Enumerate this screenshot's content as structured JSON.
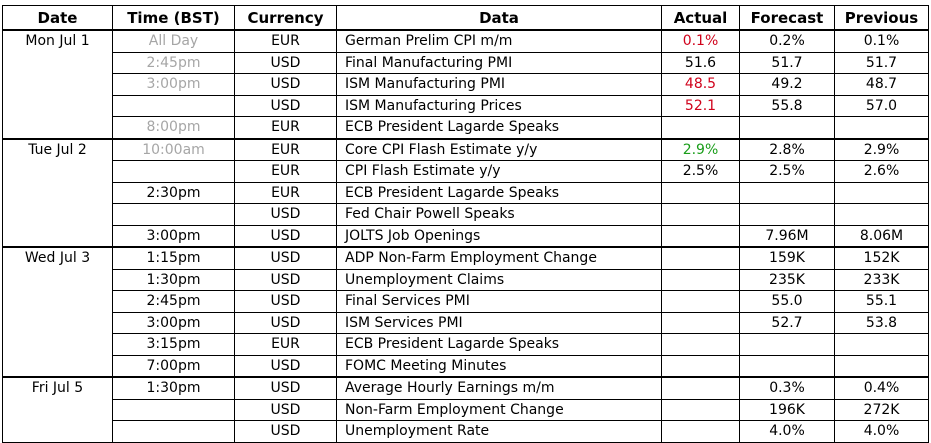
{
  "headers": [
    "Date",
    "Time (BST)",
    "Currency",
    "Data",
    "Actual",
    "Forecast",
    "Previous"
  ],
  "colors": {
    "past_time": "#a6a6a6",
    "worse": "#d0021b",
    "better": "#1a9e1a"
  },
  "days": [
    {
      "date": "Mon Jul 1",
      "rows": [
        {
          "time": "All Day",
          "time_past": true,
          "currency": "EUR",
          "data": "German Prelim CPI m/m",
          "actual": "0.1%",
          "actual_color": "red",
          "forecast": "0.2%",
          "previous": "0.1%"
        },
        {
          "time": "2:45pm",
          "time_past": true,
          "currency": "USD",
          "data": "Final Manufacturing PMI",
          "actual": "51.6",
          "actual_color": "",
          "forecast": "51.7",
          "previous": "51.7"
        },
        {
          "time": "3:00pm",
          "time_past": true,
          "currency": "USD",
          "data": "ISM Manufacturing PMI",
          "actual": "48.5",
          "actual_color": "red",
          "forecast": "49.2",
          "previous": "48.7"
        },
        {
          "time": "",
          "time_past": false,
          "currency": "USD",
          "data": "ISM Manufacturing Prices",
          "actual": "52.1",
          "actual_color": "red",
          "forecast": "55.8",
          "previous": "57.0"
        },
        {
          "time": "8:00pm",
          "time_past": true,
          "currency": "EUR",
          "data": "ECB President Lagarde Speaks",
          "actual": "",
          "actual_color": "",
          "forecast": "",
          "previous": ""
        }
      ]
    },
    {
      "date": "Tue Jul 2",
      "rows": [
        {
          "time": "10:00am",
          "time_past": true,
          "currency": "EUR",
          "data": "Core CPI Flash Estimate y/y",
          "actual": "2.9%",
          "actual_color": "green",
          "forecast": "2.8%",
          "previous": "2.9%"
        },
        {
          "time": "",
          "time_past": false,
          "currency": "EUR",
          "data": "CPI Flash Estimate y/y",
          "actual": "2.5%",
          "actual_color": "",
          "forecast": "2.5%",
          "previous": "2.6%"
        },
        {
          "time": "2:30pm",
          "time_past": false,
          "currency": "EUR",
          "data": "ECB President Lagarde Speaks",
          "actual": "",
          "actual_color": "",
          "forecast": "",
          "previous": ""
        },
        {
          "time": "",
          "time_past": false,
          "currency": "USD",
          "data": "Fed Chair Powell Speaks",
          "actual": "",
          "actual_color": "",
          "forecast": "",
          "previous": ""
        },
        {
          "time": "3:00pm",
          "time_past": false,
          "currency": "USD",
          "data": "JOLTS Job Openings",
          "actual": "",
          "actual_color": "",
          "forecast": "7.96M",
          "previous": "8.06M"
        }
      ]
    },
    {
      "date": "Wed Jul 3",
      "rows": [
        {
          "time": "1:15pm",
          "time_past": false,
          "currency": "USD",
          "data": "ADP Non-Farm Employment Change",
          "actual": "",
          "actual_color": "",
          "forecast": "159K",
          "previous": "152K"
        },
        {
          "time": "1:30pm",
          "time_past": false,
          "currency": "USD",
          "data": "Unemployment Claims",
          "actual": "",
          "actual_color": "",
          "forecast": "235K",
          "previous": "233K"
        },
        {
          "time": "2:45pm",
          "time_past": false,
          "currency": "USD",
          "data": "Final Services PMI",
          "actual": "",
          "actual_color": "",
          "forecast": "55.0",
          "previous": "55.1"
        },
        {
          "time": "3:00pm",
          "time_past": false,
          "currency": "USD",
          "data": "ISM Services PMI",
          "actual": "",
          "actual_color": "",
          "forecast": "52.7",
          "previous": "53.8"
        },
        {
          "time": "3:15pm",
          "time_past": false,
          "currency": "EUR",
          "data": "ECB President Lagarde Speaks",
          "actual": "",
          "actual_color": "",
          "forecast": "",
          "previous": ""
        },
        {
          "time": "7:00pm",
          "time_past": false,
          "currency": "USD",
          "data": "FOMC Meeting Minutes",
          "actual": "",
          "actual_color": "",
          "forecast": "",
          "previous": ""
        }
      ]
    },
    {
      "date": "Fri Jul 5",
      "rows": [
        {
          "time": "1:30pm",
          "time_past": false,
          "currency": "USD",
          "data": "Average Hourly Earnings m/m",
          "actual": "",
          "actual_color": "",
          "forecast": "0.3%",
          "previous": "0.4%"
        },
        {
          "time": "",
          "time_past": false,
          "currency": "USD",
          "data": "Non-Farm Employment Change",
          "actual": "",
          "actual_color": "",
          "forecast": "196K",
          "previous": "272K"
        },
        {
          "time": "",
          "time_past": false,
          "currency": "USD",
          "data": "Unemployment Rate",
          "actual": "",
          "actual_color": "",
          "forecast": "4.0%",
          "previous": "4.0%"
        }
      ]
    }
  ]
}
